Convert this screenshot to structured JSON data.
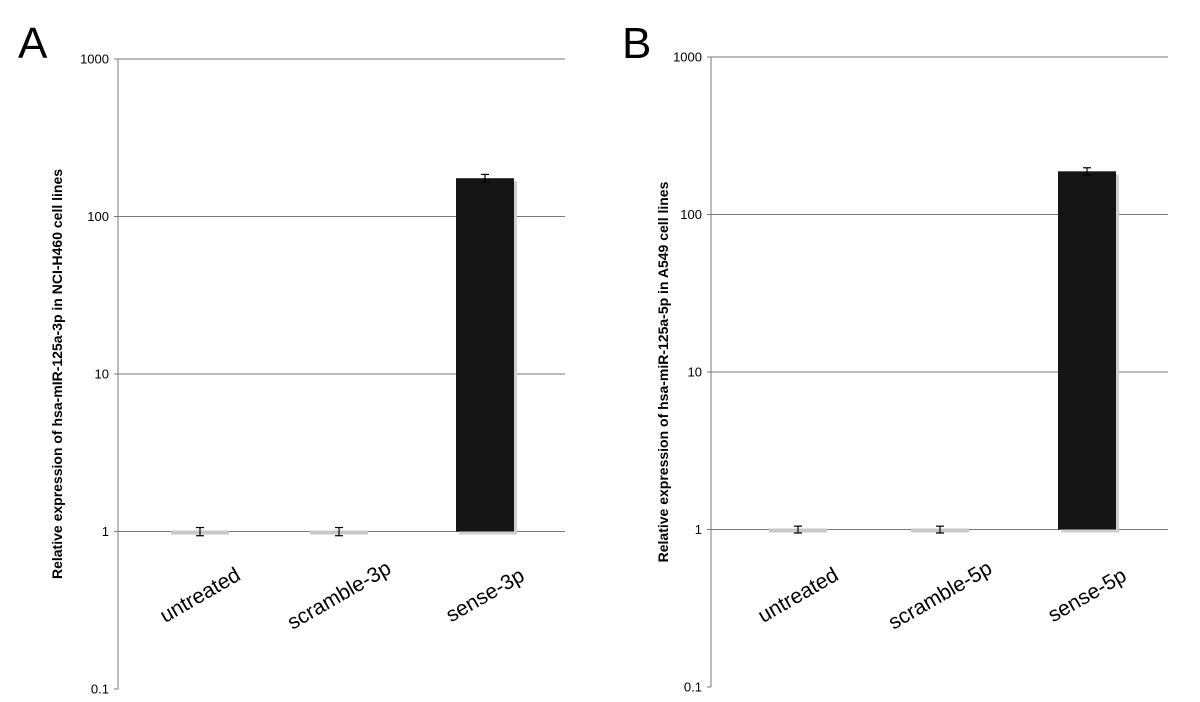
{
  "chart_data": [
    {
      "type": "bar",
      "panel_label": "A",
      "ylabel": "Relative expression of hsa-mIR-125a-3p in NCI-H460 cell lines",
      "yscale": "log",
      "ylim": [
        0.1,
        1000
      ],
      "ytick_labels": [
        "0.1",
        "1",
        "10",
        "100",
        "1000"
      ],
      "categories": [
        "untreated",
        "scramble-3p",
        "sense-3p"
      ],
      "values": [
        1,
        1,
        175
      ],
      "errors": [
        0.06,
        0.06,
        10
      ],
      "bar_colors": [
        "#c8c8c8",
        "#c8c8c8",
        "#151515"
      ],
      "grid": "horizontal major gridlines",
      "legend": "none"
    },
    {
      "type": "bar",
      "panel_label": "B",
      "ylabel": "Relative expression of hsa-miR-125a-5p in A549 cell lines",
      "yscale": "log",
      "ylim": [
        0.1,
        1000
      ],
      "ytick_labels": [
        "0.1",
        "1",
        "10",
        "100",
        "1000"
      ],
      "categories": [
        "untreated",
        "scramble-5p",
        "sense-5p"
      ],
      "values": [
        1,
        1,
        188
      ],
      "errors": [
        0.05,
        0.05,
        10
      ],
      "bar_colors": [
        "#c8c8c8",
        "#c8c8c8",
        "#151515"
      ],
      "grid": "horizontal major gridlines",
      "legend": "none"
    }
  ]
}
